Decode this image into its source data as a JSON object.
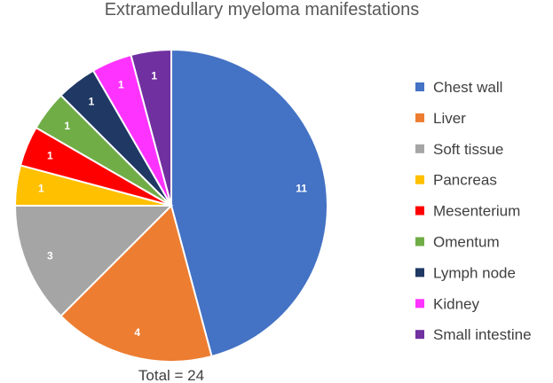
{
  "chart_data": {
    "type": "pie",
    "title": "Extramedullary myeloma manifestations",
    "categories": [
      "Chest wall",
      "Liver",
      "Soft tissue",
      "Pancreas",
      "Mesenterium",
      "Omentum",
      "Lymph node",
      "Kidney",
      "Small intestine"
    ],
    "values": [
      11,
      4,
      3,
      1,
      1,
      1,
      1,
      1,
      1
    ],
    "colors": [
      "#4472C4",
      "#ED7D31",
      "#A5A5A5",
      "#FFC000",
      "#FF0000",
      "#70AD47",
      "#203864",
      "#FF33FF",
      "#7030A0"
    ],
    "total_label": "Total = 24",
    "legend_position": "right",
    "start_angle": "12 o'clock, clockwise"
  }
}
